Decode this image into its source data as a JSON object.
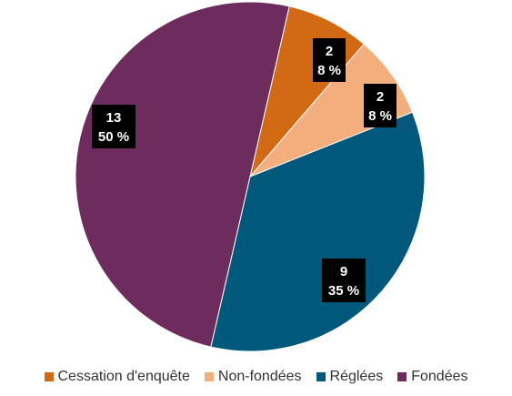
{
  "chart_data": {
    "type": "pie",
    "slices": [
      {
        "name": "Cessation d'enquête",
        "value": 2,
        "percent_label": "8 %",
        "color": "#D26A14"
      },
      {
        "name": "Non-fondées",
        "value": 2,
        "percent_label": "8 %",
        "color": "#F4AE7E"
      },
      {
        "name": "Réglées",
        "value": 9,
        "percent_label": "35 %",
        "color": "#00587B"
      },
      {
        "name": "Fondées",
        "value": 13,
        "percent_label": "50 %",
        "color": "#6D2B5E"
      }
    ],
    "start_angle_deg": 13,
    "direction": "clockwise",
    "legend_position": "bottom",
    "data_label_style": "white text on black box"
  }
}
